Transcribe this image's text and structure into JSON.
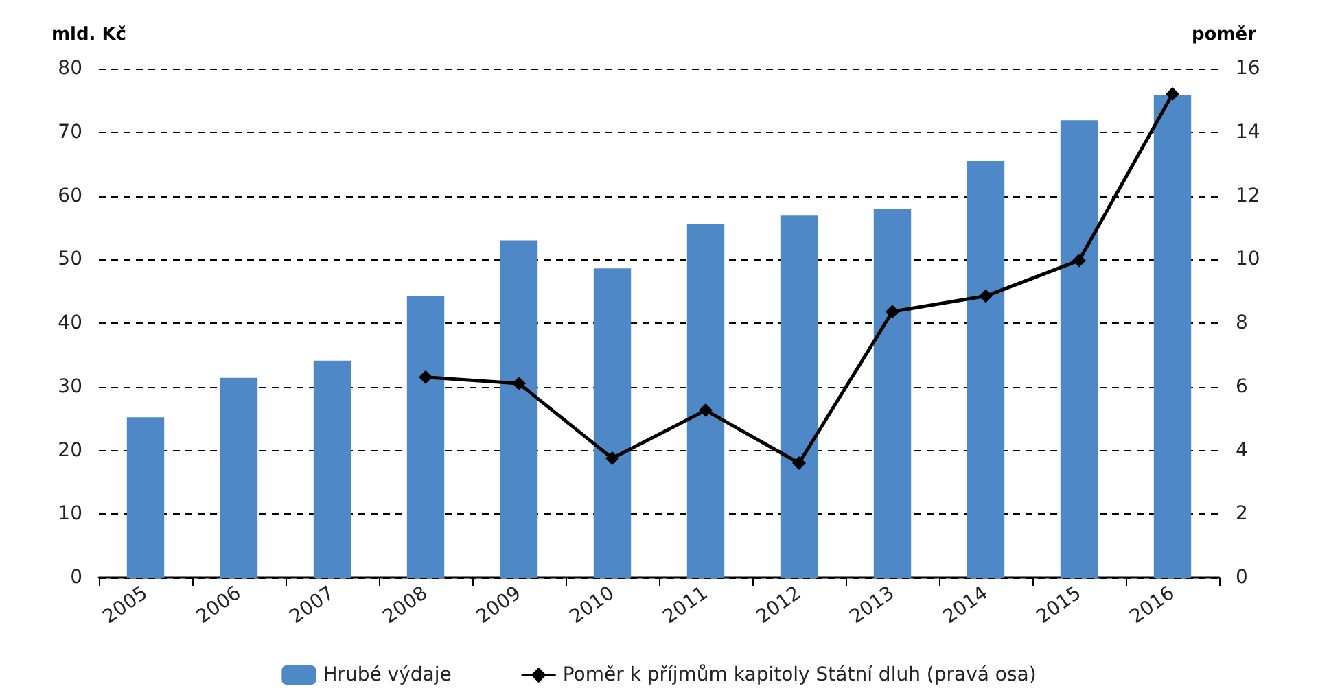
{
  "chart_data": {
    "type": "bar",
    "ylabel": "mld. Kč",
    "y2label": "poměr",
    "categories": [
      "2005",
      "2006",
      "2007",
      "2008",
      "2009",
      "2010",
      "2011",
      "2012",
      "2013",
      "2014",
      "2015",
      "2016"
    ],
    "series": [
      {
        "name": "Hrubé výdaje",
        "color": "#4f88c6",
        "values": [
          25.2,
          31.4,
          34.1,
          44.3,
          53.0,
          48.6,
          55.6,
          56.9,
          57.9,
          65.5,
          71.9,
          75.8
        ]
      },
      {
        "name": "Poměr k příjmům kapitoly Státní dluh (pravá osa)",
        "type": "line",
        "axis": "y2",
        "color": "#000000",
        "marker": "diamond",
        "values": [
          null,
          null,
          null,
          6.3,
          6.1,
          3.75,
          5.26,
          3.6,
          8.36,
          8.85,
          9.97,
          15.2
        ]
      }
    ],
    "ylim": [
      0,
      80
    ],
    "yticks": [
      0,
      10,
      20,
      30,
      40,
      50,
      60,
      70,
      80
    ],
    "y2lim": [
      0,
      16
    ],
    "y2ticks": [
      0,
      2,
      4,
      6,
      8,
      10,
      12,
      14,
      16
    ],
    "grid": "y",
    "legend": "bottom"
  }
}
